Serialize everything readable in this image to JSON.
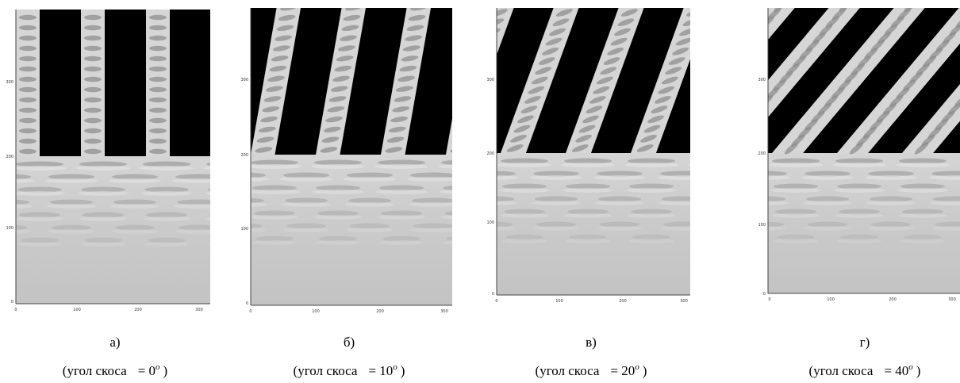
{
  "panels": [
    {
      "label": "а)",
      "caption": {
        "prefix": "(угол скоса",
        "value": "= 0",
        "sup": "o",
        "suffix": ")"
      },
      "x_ticks": [
        "0",
        "100",
        "200",
        "300"
      ],
      "y_ticks": [
        "300",
        "200",
        "100",
        "0"
      ]
    },
    {
      "label": "б)",
      "caption": {
        "prefix": "(угол скоса",
        "value": "= 10",
        "sup": "o",
        "suffix": ")"
      },
      "x_ticks": [
        "0",
        "100",
        "200",
        "300"
      ],
      "y_ticks": [
        "300",
        "200",
        "100",
        "0"
      ]
    },
    {
      "label": "в)",
      "caption": {
        "prefix": "(угол скоса",
        "value": "= 20",
        "sup": "o",
        "suffix": ")"
      },
      "x_ticks": [
        "0",
        "100",
        "200",
        "300"
      ],
      "y_ticks": [
        "300",
        "200",
        "100",
        "0"
      ]
    },
    {
      "label": "г)",
      "caption": {
        "prefix": "(угол скоса",
        "value": "= 40",
        "sup": "o",
        "suffix": ")"
      },
      "x_ticks": [
        "0",
        "100",
        "200",
        "300"
      ],
      "y_ticks": [
        "300",
        "200",
        "100",
        "0"
      ]
    }
  ]
}
